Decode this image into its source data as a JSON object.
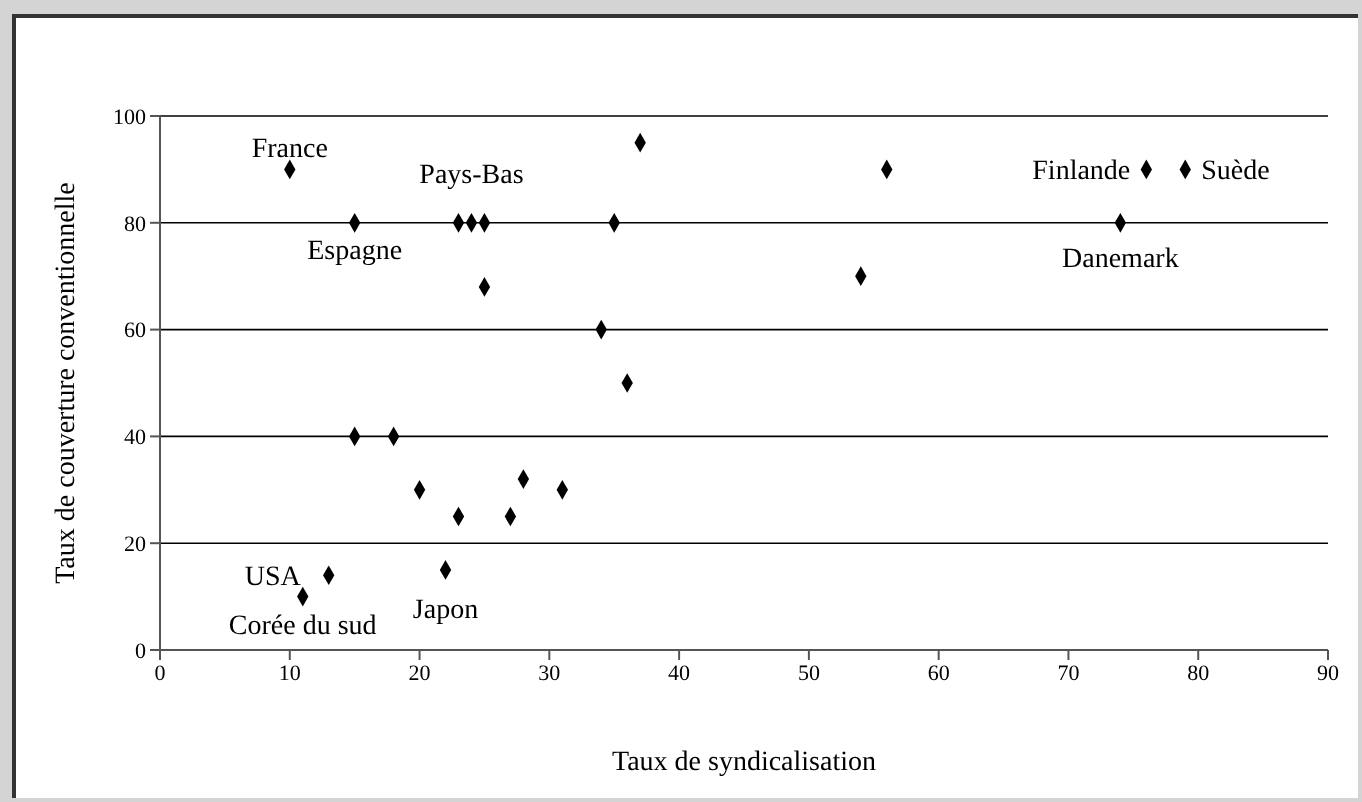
{
  "chart_data": {
    "type": "scatter",
    "xlabel": "Taux de syndicalisation",
    "ylabel": "Taux de couverture conventionnelle",
    "x": [
      10,
      15,
      23,
      24,
      25,
      25,
      35,
      37,
      34,
      36,
      15,
      18,
      20,
      23,
      27,
      28,
      31,
      22,
      13,
      11,
      56,
      54,
      74,
      76,
      79
    ],
    "values": [
      90,
      80,
      80,
      80,
      80,
      68,
      80,
      95,
      60,
      50,
      40,
      40,
      30,
      25,
      25,
      32,
      30,
      15,
      14,
      10,
      90,
      70,
      80,
      90,
      90
    ],
    "color": "#000000",
    "marker": "diamond",
    "xlim": [
      0,
      90
    ],
    "xticks": [
      0,
      10,
      20,
      30,
      40,
      50,
      60,
      70,
      80,
      90
    ],
    "ylim": [
      0,
      100
    ],
    "yticks": [
      0,
      20,
      40,
      60,
      80,
      100
    ],
    "grid": "y",
    "legend": false,
    "annotations": [
      {
        "text": "France",
        "x": 10,
        "y": 90
      },
      {
        "text": "Espagne",
        "x": 15,
        "y": 80
      },
      {
        "text": "Pays-Bas",
        "x": 24,
        "y": 80
      },
      {
        "text": "USA",
        "x": 13,
        "y": 14
      },
      {
        "text": "Corée du sud",
        "x": 11,
        "y": 10
      },
      {
        "text": "Japon",
        "x": 22,
        "y": 15
      },
      {
        "text": "Finlande",
        "x": 76,
        "y": 90
      },
      {
        "text": "Suède",
        "x": 79,
        "y": 90
      },
      {
        "text": "Danemark",
        "x": 74,
        "y": 80
      }
    ]
  }
}
